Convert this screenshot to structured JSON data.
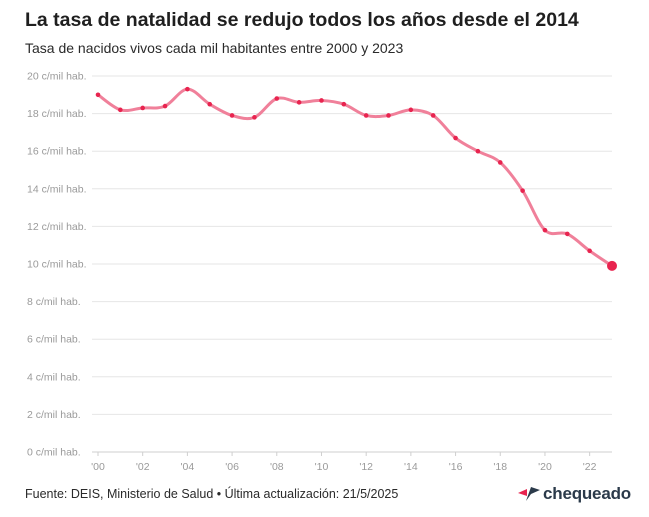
{
  "header": {
    "title": "La tasa de natalidad se redujo todos los años desde el 2014",
    "subtitle": "Tasa de nacidos vivos cada mil habitantes entre 2000 y 2023"
  },
  "footer": {
    "source": "Fuente: DEIS, Ministerio de Salud • Última actualización: 21/5/2025",
    "logo_text": "chequeado"
  },
  "colors": {
    "line": "#f0809a",
    "point": "#e8244f",
    "grid": "#e6e6e6",
    "logo_mark": "#e8244f",
    "logo_text": "#2b3a4a"
  },
  "chart_data": {
    "type": "line",
    "title": "La tasa de natalidad se redujo todos los años desde el 2014",
    "subtitle": "Tasa de nacidos vivos cada mil habitantes entre 2000 y 2023",
    "xlabel": "",
    "ylabel": "",
    "x": [
      2000,
      2001,
      2002,
      2003,
      2004,
      2005,
      2006,
      2007,
      2008,
      2009,
      2010,
      2011,
      2012,
      2013,
      2014,
      2015,
      2016,
      2017,
      2018,
      2019,
      2020,
      2021,
      2022,
      2023
    ],
    "series": [
      {
        "name": "Tasa de natalidad",
        "values": [
          19.0,
          18.2,
          18.3,
          18.4,
          19.3,
          18.5,
          17.9,
          17.8,
          18.8,
          18.6,
          18.7,
          18.5,
          17.9,
          17.9,
          18.2,
          17.9,
          16.7,
          16.0,
          15.4,
          13.9,
          11.8,
          11.6,
          10.7,
          9.9
        ]
      }
    ],
    "xlim": [
      2000,
      2023
    ],
    "ylim": [
      0,
      20
    ],
    "yticks": [
      0,
      2,
      4,
      6,
      8,
      10,
      12,
      14,
      16,
      18,
      20
    ],
    "ytick_labels": [
      "0 c/mil hab.",
      "2 c/mil hab.",
      "4 c/mil hab.",
      "6 c/mil hab.",
      "8 c/mil hab.",
      "10 c/mil hab.",
      "12 c/mil hab.",
      "14 c/mil hab.",
      "16 c/mil hab.",
      "18 c/mil hab.",
      "20 c/mil hab."
    ],
    "xticks": [
      2000,
      2002,
      2004,
      2006,
      2008,
      2010,
      2012,
      2014,
      2016,
      2018,
      2020,
      2022
    ],
    "xtick_labels": [
      "'00",
      "'02",
      "'04",
      "'06",
      "'08",
      "'10",
      "'12",
      "'14",
      "'16",
      "'18",
      "'20",
      "'22"
    ],
    "grid": true,
    "legend": "none",
    "highlight_last_point": true
  }
}
